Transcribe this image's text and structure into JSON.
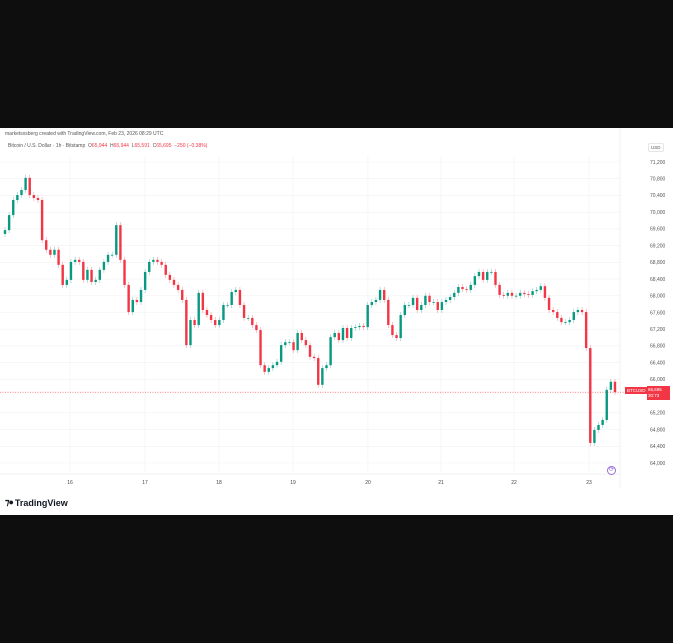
{
  "header": {
    "credit": "marketsxsberg created with TradingView.com, Feb 23, 2026 08:29 UTC",
    "symbol_title": "Bitcoin / U.S. Dollar · 1h · Bitstamp",
    "ohlc": {
      "o_label": "O",
      "o": "65,944",
      "h_label": "H",
      "h": "65,944",
      "l_label": "L",
      "l": "65,591",
      "c_label": "C",
      "c": "65,695",
      "change": "−250 (−0.38%)"
    },
    "currency": "USD"
  },
  "price_tag": {
    "symbol": "BTCUSD",
    "price": "65,695",
    "countdown": "30:73"
  },
  "brand": {
    "name": "TradingView"
  },
  "icons": {
    "realtime": "scroll-to-realtime-icon",
    "logo": "tradingview-logo-icon"
  },
  "colors": {
    "up": "#089981",
    "down": "#f23645",
    "background": "#ffffff",
    "frame": "#0e0e0e"
  },
  "chart_data": {
    "type": "candlestick",
    "title": "",
    "xlabel": "",
    "ylabel": "",
    "interval": "1h",
    "ylim": [
      63800,
      71400
    ],
    "grid": true,
    "y_ticks": [
      "71,200",
      "70,800",
      "70,400",
      "70,000",
      "69,600",
      "69,200",
      "68,800",
      "68,400",
      "68,000",
      "67,600",
      "67,200",
      "66,800",
      "66,400",
      "66,000",
      "65,200",
      "64,800",
      "64,400",
      "64,000"
    ],
    "x_ticks": [
      "16",
      "17",
      "18",
      "19",
      "20",
      "21",
      "22",
      "23"
    ],
    "last_price": 65695,
    "first_open": 69480,
    "close": [
      69570,
      69930,
      70290,
      70410,
      70530,
      70820,
      70410,
      70340,
      70290,
      69330,
      69100,
      68980,
      69100,
      68740,
      68260,
      68380,
      68810,
      68860,
      68810,
      68380,
      68620,
      68330,
      68380,
      68620,
      68810,
      68980,
      68980,
      69690,
      68860,
      68260,
      67610,
      67900,
      67850,
      68140,
      68570,
      68810,
      68860,
      68810,
      68740,
      68500,
      68380,
      68260,
      68140,
      67900,
      66820,
      67420,
      67300,
      68070,
      67660,
      67540,
      67420,
      67300,
      67420,
      67780,
      67780,
      68090,
      68140,
      67780,
      67470,
      67470,
      67300,
      67180,
      66340,
      66180,
      66270,
      66340,
      66420,
      66820,
      66890,
      66890,
      66700,
      67110,
      66940,
      66820,
      66540,
      66510,
      65870,
      66270,
      66340,
      67010,
      67110,
      66940,
      67230,
      66990,
      67230,
      67250,
      67280,
      67250,
      67780,
      67850,
      67900,
      68140,
      67900,
      67300,
      67060,
      66990,
      67540,
      67780,
      67780,
      67950,
      67660,
      67780,
      68000,
      67850,
      67850,
      67660,
      67850,
      67900,
      67970,
      68070,
      68210,
      68160,
      68140,
      68260,
      68470,
      68570,
      68380,
      68570,
      68570,
      68260,
      68020,
      68000,
      68070,
      68000,
      68000,
      68070,
      68040,
      68020,
      68110,
      68140,
      68230,
      67950,
      67660,
      67610,
      67470,
      67370,
      67370,
      67420,
      67610,
      67660,
      67610,
      66750,
      64480,
      64790,
      64910,
      65030,
      65750,
      65944,
      65695
    ]
  }
}
